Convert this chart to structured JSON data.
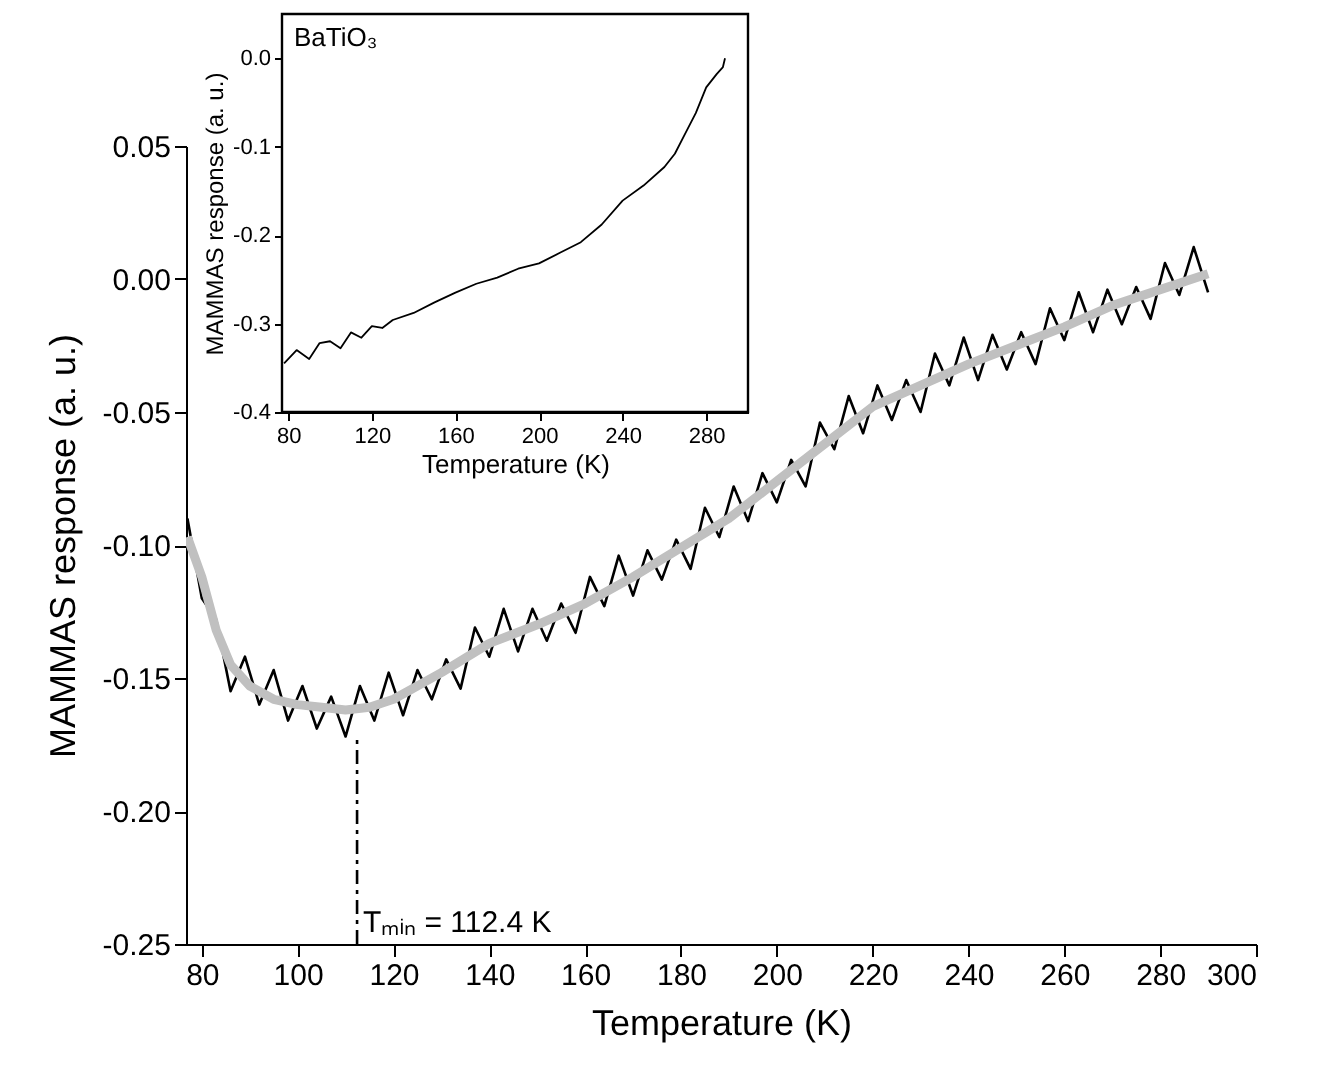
{
  "chart_data": [
    {
      "type": "line",
      "xlabel": "Temperature (K)",
      "ylabel": "MAMMAS response (a. u.)",
      "xlim": [
        76.7,
        300
      ],
      "xticks": [
        80,
        100,
        120,
        140,
        160,
        180,
        200,
        220,
        240,
        260,
        280,
        300
      ],
      "ylim": [
        -0.25,
        0.05
      ],
      "yticks": [
        -0.25,
        {
          "value": -0.2,
          "label": "-0.20"
        },
        -0.15,
        {
          "value": -0.1,
          "label": "-0.10"
        },
        -0.05,
        {
          "value": 0,
          "label": "0.00"
        },
        0.05
      ],
      "grid": false,
      "marker": "none",
      "line_style": "solid",
      "series": [
        {
          "color": "#000000",
          "x": [
            77,
            80,
            83,
            86,
            89,
            92,
            95,
            98,
            101,
            104,
            107,
            110,
            113,
            116,
            119,
            122,
            125,
            128,
            131,
            134,
            137,
            140,
            143,
            146,
            149,
            152,
            155,
            158,
            161,
            164,
            167,
            170,
            173,
            176,
            179,
            182,
            185,
            188,
            191,
            194,
            197,
            200,
            203,
            206,
            209,
            212,
            215,
            218,
            221,
            224,
            227,
            230,
            233,
            236,
            239,
            242,
            245,
            248,
            251,
            254,
            257,
            260,
            263,
            266,
            269,
            272,
            275,
            278,
            281,
            284,
            287,
            290
          ],
          "values": [
            -0.09,
            -0.12,
            -0.128,
            -0.155,
            -0.142,
            -0.16,
            -0.147,
            -0.166,
            -0.153,
            -0.169,
            -0.157,
            -0.172,
            -0.153,
            -0.166,
            -0.148,
            -0.164,
            -0.147,
            -0.158,
            -0.143,
            -0.154,
            -0.131,
            -0.142,
            -0.124,
            -0.14,
            -0.124,
            -0.136,
            -0.122,
            -0.133,
            -0.112,
            -0.123,
            -0.104,
            -0.119,
            -0.102,
            -0.113,
            -0.098,
            -0.109,
            -0.086,
            -0.097,
            -0.078,
            -0.091,
            -0.073,
            -0.084,
            -0.068,
            -0.078,
            -0.054,
            -0.064,
            -0.044,
            -0.058,
            -0.04,
            -0.053,
            -0.038,
            -0.05,
            -0.028,
            -0.04,
            -0.022,
            -0.038,
            -0.021,
            -0.034,
            -0.02,
            -0.032,
            -0.011,
            -0.023,
            -0.005,
            -0.02,
            -0.004,
            -0.017,
            -0.003,
            -0.015,
            0.006,
            -0.006,
            0.012,
            -0.005
          ]
        },
        {
          "color": "#c0c0c0",
          "x": [
            77,
            80,
            83,
            86,
            90,
            95,
            100,
            105,
            110,
            115,
            120,
            130,
            140,
            150,
            160,
            170,
            180,
            190,
            200,
            210,
            220,
            230,
            240,
            250,
            260,
            270,
            280,
            290
          ],
          "values": [
            -0.097,
            -0.112,
            -0.132,
            -0.145,
            -0.153,
            -0.158,
            -0.16,
            -0.161,
            -0.162,
            -0.161,
            -0.158,
            -0.148,
            -0.137,
            -0.13,
            -0.122,
            -0.112,
            -0.101,
            -0.09,
            -0.076,
            -0.062,
            -0.048,
            -0.04,
            -0.032,
            -0.025,
            -0.018,
            -0.01,
            -0.004,
            0.002
          ]
        }
      ],
      "ref_lines": [
        {
          "axis": "x",
          "value": 112.4,
          "label": "Tₘᵢₙ = 112.4 K",
          "line_style": "dashed",
          "color": "#000000"
        }
      ]
    },
    {
      "type": "line",
      "xlabel": "Temperature (K)",
      "ylabel": "MAMMAS response (a. u.)",
      "xlim": [
        77,
        300
      ],
      "xticks": [
        80,
        120,
        160,
        200,
        240,
        280
      ],
      "ylim": [
        -0.4,
        0.05
      ],
      "yticks": [
        {
          "value": -0.4,
          "label": "-0.4"
        },
        -0.3,
        -0.2,
        -0.1,
        {
          "value": 0,
          "label": "0.0"
        }
      ],
      "grid": false,
      "marker": "none",
      "line_style": "solid",
      "annotations": [
        "BaTiO₃"
      ],
      "series": [
        {
          "color": "#000000",
          "x": [
            78,
            84,
            90,
            95,
            100,
            105,
            110,
            115,
            120,
            125,
            130,
            140,
            150,
            160,
            170,
            180,
            190,
            200,
            210,
            220,
            230,
            240,
            250,
            260,
            265,
            270,
            275,
            280,
            285,
            288,
            289
          ],
          "values": [
            -0.345,
            -0.33,
            -0.34,
            -0.322,
            -0.32,
            -0.328,
            -0.31,
            -0.316,
            -0.303,
            -0.305,
            -0.296,
            -0.288,
            -0.276,
            -0.265,
            -0.255,
            -0.248,
            -0.238,
            -0.232,
            -0.22,
            -0.208,
            -0.188,
            -0.161,
            -0.144,
            -0.123,
            -0.108,
            -0.085,
            -0.062,
            -0.033,
            -0.018,
            -0.01,
            0.0
          ]
        }
      ]
    }
  ]
}
